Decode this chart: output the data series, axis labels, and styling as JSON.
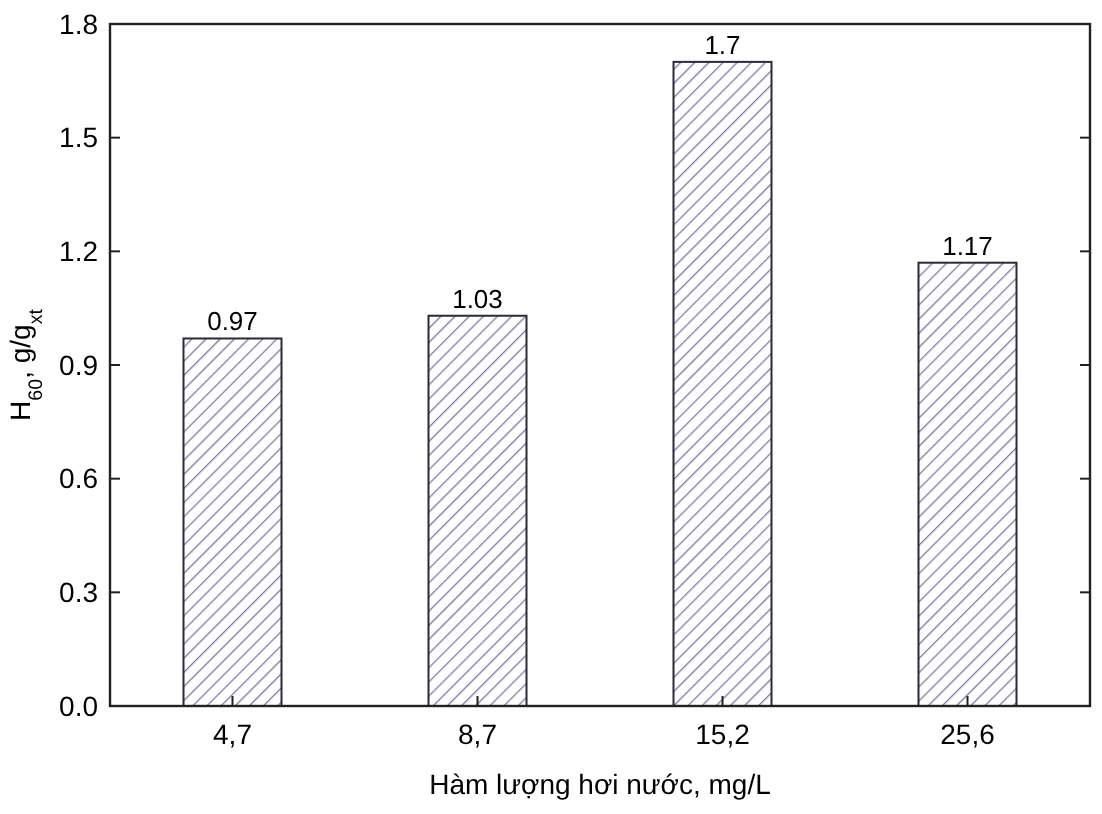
{
  "chart_data": {
    "type": "bar",
    "xlabel": "Hàm lượng hơi nước, mg/L",
    "ylabel": "H$_{60}$, g/g$_{xt}$",
    "categories": [
      "4,7",
      "8,7",
      "15,2",
      "25,6"
    ],
    "values": [
      0.97,
      1.03,
      1.7,
      1.17
    ],
    "color": "#2a2a3a",
    "ylim": [
      0,
      1.8
    ],
    "yticks": [
      {
        "value": 0,
        "label": "0.0"
      },
      0.3,
      0.6,
      0.9,
      1.2,
      1.5,
      1.8
    ],
    "data_labels": true,
    "grid": false
  }
}
